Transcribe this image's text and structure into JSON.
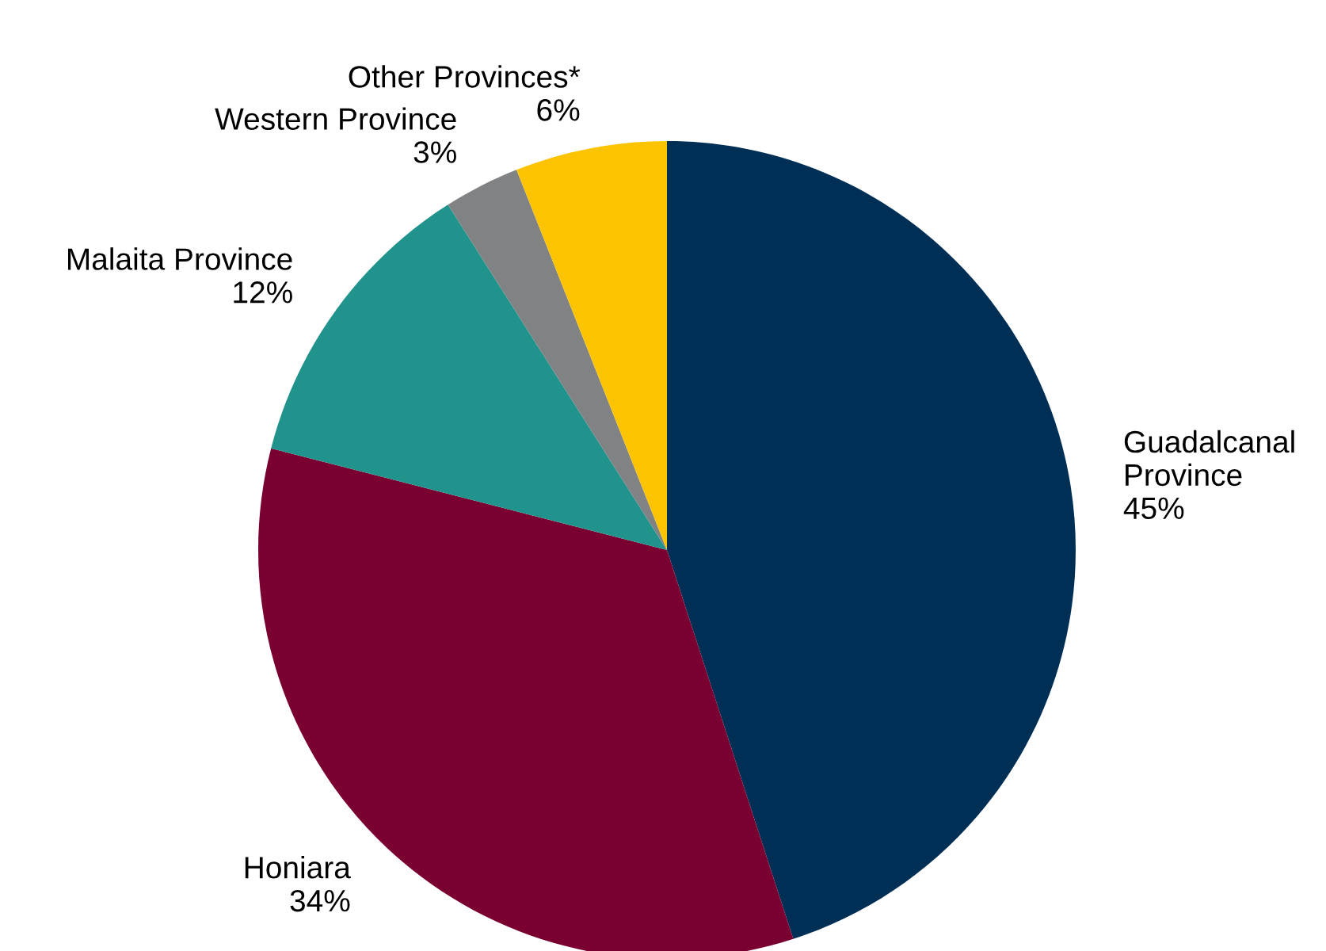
{
  "chart_data": {
    "type": "pie",
    "categories": [
      "Guadalcanal\nProvince",
      "Honiara",
      "Malaita Province",
      "Western Province",
      "Other Provinces*"
    ],
    "values": [
      45,
      34,
      12,
      3,
      6
    ],
    "colors": [
      "#002f56",
      "#7a0032",
      "#20938c",
      "#808284",
      "#fcc400"
    ],
    "value_labels": [
      "45%",
      "34%",
      "12%",
      "3%",
      "6%"
    ]
  }
}
